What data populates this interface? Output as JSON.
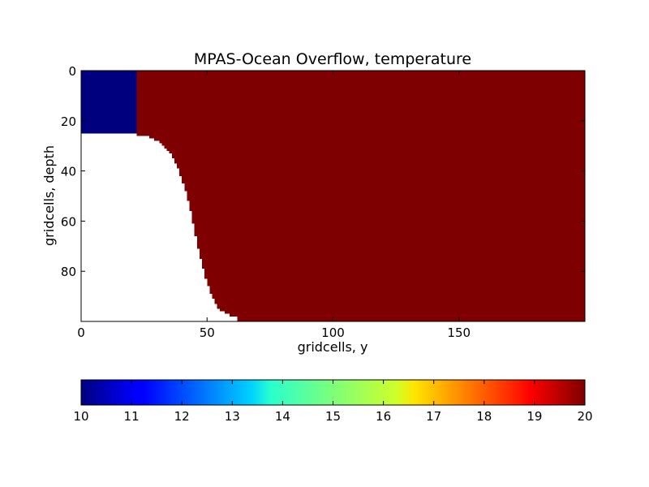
{
  "chart_data": {
    "type": "heatmap",
    "title": "MPAS-Ocean Overflow, temperature",
    "xlabel": "gridcells, y",
    "ylabel": "gridcells, depth",
    "xlim": [
      0,
      200
    ],
    "ylim": [
      100,
      0
    ],
    "x_ticks": [
      "0",
      "50",
      "100",
      "150"
    ],
    "x_tick_values": [
      0,
      50,
      100,
      150
    ],
    "y_ticks": [
      "0",
      "20",
      "40",
      "60",
      "80"
    ],
    "y_tick_values": [
      0,
      20,
      40,
      60,
      80
    ],
    "colormap": "jet",
    "colorbar": {
      "orientation": "horizontal",
      "min": 10,
      "max": 20,
      "tick_labels": [
        "10",
        "11",
        "12",
        "13",
        "14",
        "15",
        "16",
        "17",
        "18",
        "19",
        "20"
      ]
    },
    "regions": [
      {
        "name": "cold",
        "value": 10,
        "color": "#00007f",
        "x_range": [
          0,
          22
        ],
        "depth_range": [
          0,
          25
        ]
      },
      {
        "name": "warm",
        "value": 20,
        "color": "#7f0000",
        "x_range": [
          22,
          200
        ],
        "depth_range": [
          0,
          100
        ]
      }
    ],
    "land_boundary": [
      [
        0,
        25
      ],
      [
        15,
        25
      ],
      [
        15,
        26
      ],
      [
        26,
        26
      ],
      [
        27,
        27
      ],
      [
        29,
        28
      ],
      [
        31,
        29
      ],
      [
        32,
        30
      ],
      [
        33,
        31
      ],
      [
        34,
        32
      ],
      [
        35,
        33
      ],
      [
        36,
        35
      ],
      [
        37,
        37
      ],
      [
        38,
        39
      ],
      [
        39,
        42
      ],
      [
        40,
        45
      ],
      [
        41,
        48
      ],
      [
        42,
        52
      ],
      [
        43,
        56
      ],
      [
        44,
        61
      ],
      [
        45,
        66
      ],
      [
        46,
        71
      ],
      [
        47,
        75
      ],
      [
        48,
        79
      ],
      [
        49,
        83
      ],
      [
        50,
        86
      ],
      [
        51,
        89
      ],
      [
        52,
        91
      ],
      [
        53,
        93
      ],
      [
        54,
        95
      ],
      [
        55,
        96
      ],
      [
        57,
        97
      ],
      [
        59,
        98
      ],
      [
        62,
        99
      ],
      [
        62,
        100
      ]
    ],
    "grid": false
  }
}
